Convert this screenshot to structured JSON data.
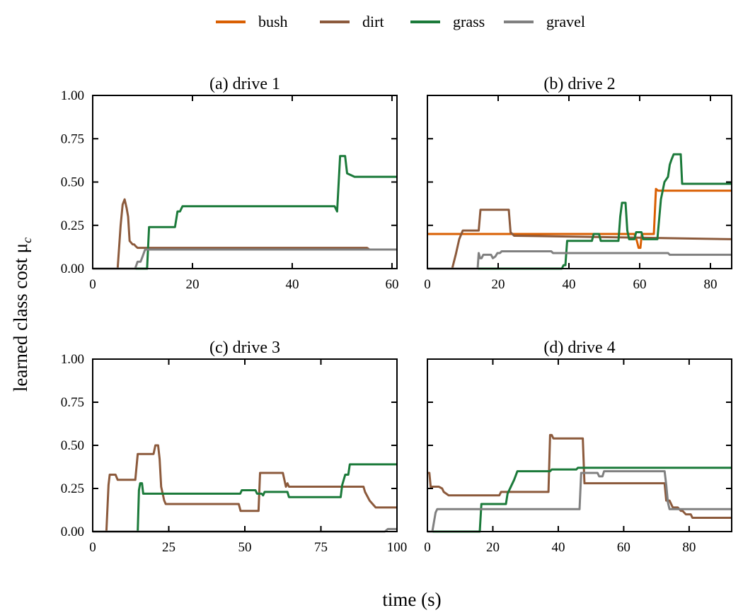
{
  "xlabel": "time (s)",
  "ylabel": "learned class cost μ",
  "ylabel_sub": "c",
  "legend": [
    {
      "name": "bush",
      "color": "#d95f02"
    },
    {
      "name": "dirt",
      "color": "#8c5a3c"
    },
    {
      "name": "grass",
      "color": "#1b7a3a"
    },
    {
      "name": "gravel",
      "color": "#808080"
    }
  ],
  "yticks": [
    "0.00",
    "0.25",
    "0.50",
    "0.75",
    "1.00"
  ],
  "chart_data": [
    {
      "type": "line",
      "title": "(a) drive 1",
      "xlim": [
        0,
        61
      ],
      "ylim": [
        0,
        1
      ],
      "xticks": [
        "0",
        "20",
        "40",
        "60"
      ],
      "xtick_values": [
        0,
        20,
        40,
        60
      ],
      "series": [
        {
          "name": "dirt",
          "x": [
            0,
            5,
            5.6,
            6,
            6.4,
            6.8,
            7.1,
            7.4,
            8,
            8.3,
            8.6,
            9,
            55,
            55.5,
            61
          ],
          "y": [
            0,
            0,
            0.25,
            0.37,
            0.4,
            0.35,
            0.3,
            0.16,
            0.14,
            0.14,
            0.13,
            0.12,
            0.12,
            0.11,
            0.11
          ]
        },
        {
          "name": "grass",
          "x": [
            0,
            10.9,
            11.3,
            16.5,
            17,
            17.5,
            18,
            48.5,
            49,
            49.6,
            50.6,
            51,
            52.5,
            61
          ],
          "y": [
            0,
            0,
            0.24,
            0.24,
            0.33,
            0.33,
            0.36,
            0.36,
            0.33,
            0.65,
            0.65,
            0.55,
            0.53,
            0.53
          ]
        },
        {
          "name": "gravel",
          "x": [
            0,
            8.5,
            9,
            9.6,
            10,
            10.5,
            61
          ],
          "y": [
            0,
            0,
            0.04,
            0.04,
            0.07,
            0.11,
            0.11
          ]
        }
      ]
    },
    {
      "type": "line",
      "title": "(b) drive 2",
      "xlim": [
        0,
        86
      ],
      "ylim": [
        0,
        1
      ],
      "xticks": [
        "0",
        "20",
        "40",
        "60",
        "80"
      ],
      "xtick_values": [
        0,
        20,
        40,
        60,
        80
      ],
      "series": [
        {
          "name": "bush",
          "x": [
            0,
            58.5,
            59.2,
            59.7,
            60.2,
            60.6,
            64,
            64.6,
            65.2,
            86
          ],
          "y": [
            0.2,
            0.2,
            0.16,
            0.12,
            0.12,
            0.2,
            0.2,
            0.46,
            0.45,
            0.45
          ]
        },
        {
          "name": "dirt",
          "x": [
            0,
            7,
            8,
            9,
            9.6,
            10,
            10.5,
            14.5,
            15,
            23,
            23.5,
            24.5,
            86
          ],
          "y": [
            0,
            0,
            0.08,
            0.17,
            0.2,
            0.22,
            0.22,
            0.22,
            0.34,
            0.34,
            0.21,
            0.19,
            0.17
          ]
        },
        {
          "name": "grass",
          "x": [
            0,
            38,
            38.5,
            39,
            39.5,
            46.5,
            47,
            48.5,
            49,
            54,
            54.5,
            55,
            56,
            56.5,
            57,
            58.5,
            59,
            60.5,
            61,
            65,
            66,
            67,
            68,
            68.5,
            69,
            69.6,
            71.6,
            72,
            86
          ],
          "y": [
            0,
            0,
            0.02,
            0.02,
            0.16,
            0.16,
            0.2,
            0.2,
            0.16,
            0.16,
            0.3,
            0.38,
            0.38,
            0.22,
            0.17,
            0.17,
            0.21,
            0.21,
            0.17,
            0.17,
            0.4,
            0.5,
            0.53,
            0.6,
            0.63,
            0.66,
            0.66,
            0.49,
            0.49
          ]
        },
        {
          "name": "gravel",
          "x": [
            0,
            14.2,
            14.5,
            14.9,
            15.3,
            15.8,
            18,
            18.5,
            19.2,
            19.8,
            20.5,
            21,
            21.5,
            35,
            35.5,
            42,
            42.5,
            68,
            68.5,
            74.5,
            75,
            86
          ],
          "y": [
            0,
            0,
            0.09,
            0.06,
            0.06,
            0.08,
            0.08,
            0.06,
            0.07,
            0.09,
            0.09,
            0.1,
            0.1,
            0.1,
            0.09,
            0.09,
            0.09,
            0.09,
            0.08,
            0.08,
            0.08,
            0.08
          ]
        }
      ]
    },
    {
      "type": "line",
      "title": "(c) drive 3",
      "xlim": [
        0,
        100
      ],
      "ylim": [
        0,
        1
      ],
      "xticks": [
        "0",
        "25",
        "50",
        "75",
        "100"
      ],
      "xtick_values": [
        0,
        25,
        50,
        75,
        100
      ],
      "series": [
        {
          "name": "dirt",
          "x": [
            0,
            4.5,
            5.2,
            5.6,
            7.5,
            8.2,
            14,
            14.8,
            20,
            20.6,
            21.5,
            22,
            22.5,
            23,
            23.5,
            24,
            48,
            48.6,
            54.5,
            55,
            62.5,
            63,
            63.5,
            64,
            64.5,
            65,
            89,
            89.5,
            91,
            93,
            100
          ],
          "y": [
            0,
            0,
            0.27,
            0.33,
            0.33,
            0.3,
            0.3,
            0.45,
            0.45,
            0.5,
            0.5,
            0.42,
            0.26,
            0.22,
            0.18,
            0.16,
            0.16,
            0.12,
            0.12,
            0.34,
            0.34,
            0.3,
            0.26,
            0.28,
            0.26,
            0.26,
            0.26,
            0.23,
            0.18,
            0.14,
            0.14
          ]
        },
        {
          "name": "grass",
          "x": [
            0,
            14.8,
            15.2,
            15.6,
            16.2,
            16.6,
            48.5,
            49,
            53.5,
            54,
            55.5,
            56,
            56.5,
            57,
            57.5,
            64,
            64.5,
            81.5,
            82,
            83,
            84,
            84.5,
            100
          ],
          "y": [
            0,
            0,
            0.24,
            0.28,
            0.28,
            0.22,
            0.22,
            0.24,
            0.24,
            0.22,
            0.22,
            0.21,
            0.23,
            0.23,
            0.23,
            0.23,
            0.2,
            0.2,
            0.27,
            0.33,
            0.33,
            0.39,
            0.39
          ]
        },
        {
          "name": "gravel",
          "x": [
            0,
            90,
            96,
            97,
            100
          ],
          "y": [
            0,
            0,
            0,
            0.015,
            0.015
          ]
        }
      ]
    },
    {
      "type": "line",
      "title": "(d) drive 4",
      "xlim": [
        0,
        93
      ],
      "ylim": [
        0,
        1
      ],
      "xticks": [
        "0",
        "20",
        "40",
        "60",
        "80"
      ],
      "xtick_values": [
        0,
        20,
        40,
        60,
        80
      ],
      "series": [
        {
          "name": "dirt",
          "x": [
            0,
            0.6,
            1,
            3.5,
            4.5,
            5,
            6.5,
            22,
            22.5,
            25.5,
            26,
            37,
            37.5,
            38,
            38.5,
            39,
            47.5,
            48,
            72.5,
            73,
            74,
            75,
            76.5,
            77.5,
            78,
            79,
            80.5,
            81,
            93
          ],
          "y": [
            0.34,
            0.34,
            0.26,
            0.26,
            0.25,
            0.23,
            0.21,
            0.21,
            0.23,
            0.23,
            0.23,
            0.23,
            0.56,
            0.56,
            0.54,
            0.54,
            0.54,
            0.28,
            0.28,
            0.18,
            0.18,
            0.14,
            0.14,
            0.12,
            0.12,
            0.1,
            0.1,
            0.08,
            0.08
          ]
        },
        {
          "name": "grass",
          "x": [
            0,
            16,
            16.5,
            24,
            24.5,
            26.5,
            27.5,
            28,
            37.5,
            38,
            45.5,
            46,
            48,
            48.5,
            93
          ],
          "y": [
            0,
            0,
            0.16,
            0.16,
            0.22,
            0.3,
            0.35,
            0.35,
            0.35,
            0.36,
            0.36,
            0.37,
            0.37,
            0.37,
            0.37
          ]
        },
        {
          "name": "gravel",
          "x": [
            0,
            1.5,
            2.5,
            3,
            46.5,
            47,
            52,
            52.5,
            53.5,
            54,
            72.5,
            73,
            73.5,
            74,
            93
          ],
          "y": [
            0,
            0,
            0.11,
            0.13,
            0.13,
            0.34,
            0.34,
            0.32,
            0.32,
            0.35,
            0.35,
            0.27,
            0.17,
            0.13,
            0.13
          ]
        }
      ]
    }
  ]
}
